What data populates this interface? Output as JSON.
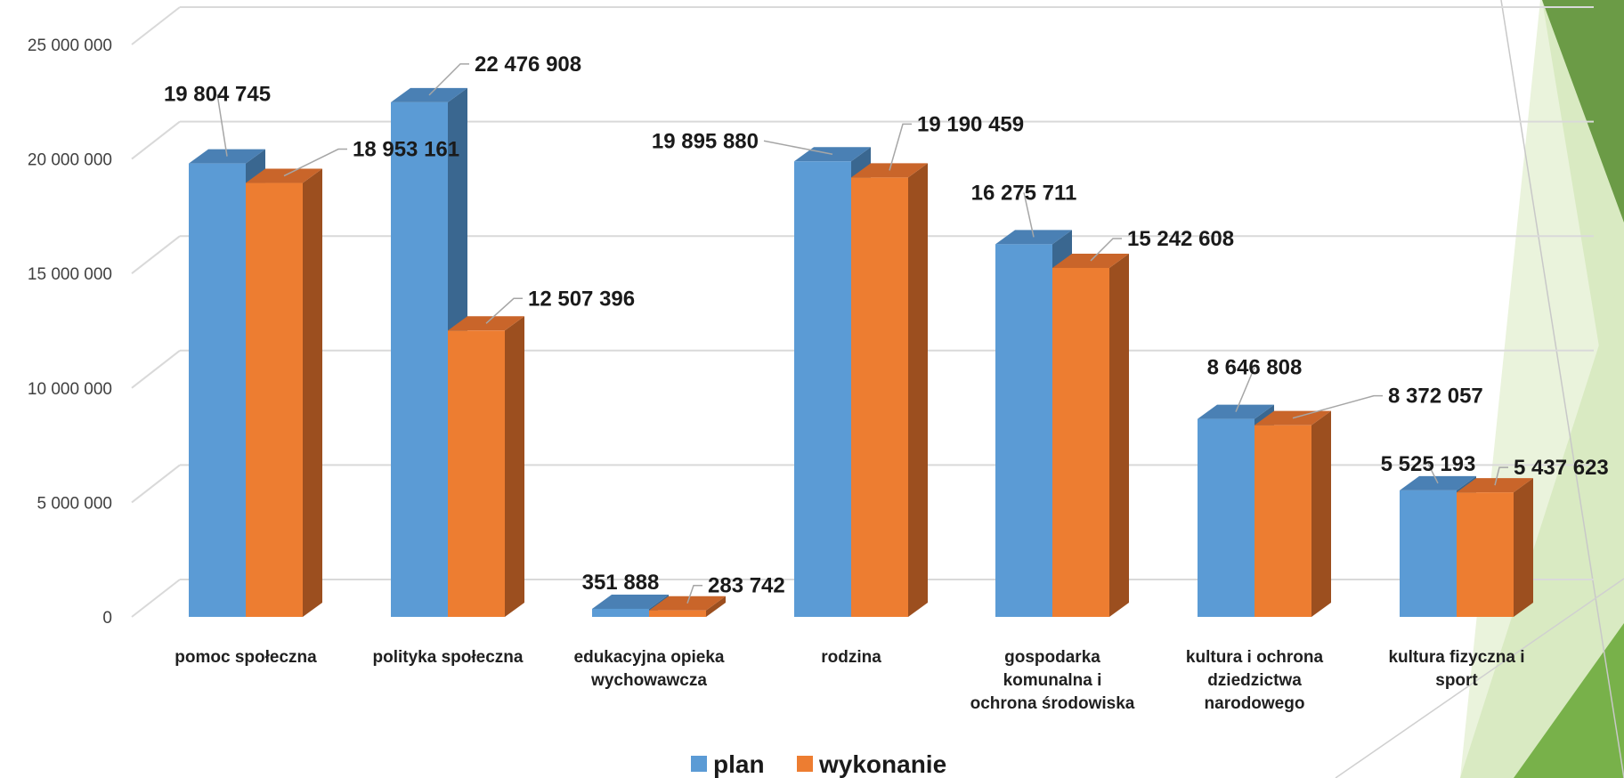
{
  "chart_data": {
    "type": "bar",
    "categories": [
      [
        "pomoc społeczna"
      ],
      [
        "polityka społeczna"
      ],
      [
        "edukacyjna opieka",
        "wychowawcza"
      ],
      [
        "rodzina"
      ],
      [
        "gospodarka",
        "komunalna i",
        "ochrona środowiska"
      ],
      [
        "kultura i ochrona",
        "dziedzictwa",
        "narodowego"
      ],
      [
        "kultura fizyczna i",
        "sport"
      ]
    ],
    "series": [
      {
        "name": "plan",
        "values": [
          19804745,
          22476908,
          351888,
          19895880,
          16275711,
          8646808,
          5525193
        ],
        "labels": [
          "19 804 745",
          "22 476 908",
          "351 888",
          "19 895 880",
          "16 275 711",
          "8 646 808",
          "5 525 193"
        ],
        "color": "#5b9bd5",
        "side_color": "#3a6790",
        "top_color": "#4a80b4"
      },
      {
        "name": "wykonanie",
        "values": [
          18953161,
          12507396,
          283742,
          19190459,
          15242608,
          8372057,
          5437623
        ],
        "labels": [
          "18 953 161",
          "12 507 396",
          "283 742",
          "19 190 459",
          "15 242 608",
          "8 372 057",
          "5 437 623"
        ],
        "color": "#ed7d31",
        "side_color": "#9c4f1f",
        "top_color": "#c9652a"
      }
    ],
    "yticks": [
      {
        "value": 0,
        "label": "0"
      },
      {
        "value": 5000000,
        "label": "5 000 000"
      },
      {
        "value": 10000000,
        "label": "10 000 000"
      },
      {
        "value": 15000000,
        "label": "15 000 000"
      },
      {
        "value": 20000000,
        "label": "20 000 000"
      },
      {
        "value": 25000000,
        "label": "25 000 000"
      }
    ],
    "ylim": [
      0,
      25000000
    ],
    "grid": true,
    "legend_position": "bottom",
    "title": "",
    "xlabel": "",
    "ylabel": ""
  },
  "decoration": {
    "accent_dark": "#6b9b46",
    "accent_mid": "#78b14a",
    "accent_light": "#d9eac2",
    "accent_pale": "#eaf3dc"
  }
}
